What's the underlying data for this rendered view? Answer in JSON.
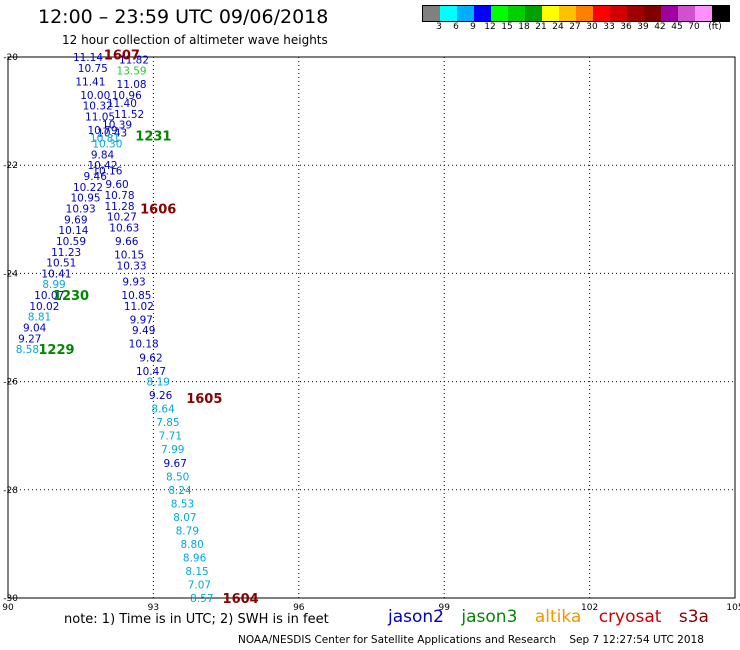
{
  "header": {
    "title": "12:00 – 23:59 UTC 09/06/2018",
    "subtitle": "12 hour collection of altimeter wave heights"
  },
  "colorbar": {
    "colors": [
      "#808080",
      "#00ffff",
      "#00b0ff",
      "#0000ff",
      "#00ff00",
      "#00d000",
      "#00a000",
      "#ffff00",
      "#ffc000",
      "#ff8000",
      "#ff0000",
      "#d00000",
      "#a00000",
      "#800000",
      "#a000a0",
      "#d050d0",
      "#ff90ff",
      "#000000"
    ],
    "labels": [
      "3",
      "6",
      "9",
      "12",
      "15",
      "18",
      "21",
      "24",
      "27",
      "30",
      "33",
      "36",
      "39",
      "42",
      "45",
      "70",
      "(ft)"
    ]
  },
  "map": {
    "lon_range": [
      90,
      105
    ],
    "lat_range": [
      -30,
      -20
    ],
    "x_ticks": [
      "90",
      "93",
      "96",
      "99",
      "102",
      "105"
    ],
    "y_ticks": [
      "-20",
      "-22",
      "-24",
      "-26",
      "-28",
      "-30"
    ]
  },
  "observations": [
    {
      "lon": 91.65,
      "lat": -20.0,
      "text": "11.14",
      "color": "#0000cc"
    },
    {
      "lon": 92.6,
      "lat": -20.05,
      "text": "11.82",
      "color": "#0000cc"
    },
    {
      "lon": 91.75,
      "lat": -20.2,
      "text": "10.75",
      "color": "#0000cc"
    },
    {
      "lon": 92.55,
      "lat": -20.25,
      "text": "13.59",
      "color": "#22cc22"
    },
    {
      "lon": 91.7,
      "lat": -20.45,
      "text": "11.41",
      "color": "#0000cc"
    },
    {
      "lon": 92.55,
      "lat": -20.5,
      "text": "11.08",
      "color": "#0000cc"
    },
    {
      "lon": 91.8,
      "lat": -20.7,
      "text": "10.00",
      "color": "#0000cc"
    },
    {
      "lon": 92.45,
      "lat": -20.7,
      "text": "10.96",
      "color": "#0000cc"
    },
    {
      "lon": 91.85,
      "lat": -20.9,
      "text": "10.32",
      "color": "#0000cc"
    },
    {
      "lon": 92.35,
      "lat": -20.85,
      "text": "11.40",
      "color": "#0000cc"
    },
    {
      "lon": 91.9,
      "lat": -21.1,
      "text": "11.05",
      "color": "#0000cc"
    },
    {
      "lon": 92.5,
      "lat": -21.05,
      "text": "11.52",
      "color": "#0000cc"
    },
    {
      "lon": 92.25,
      "lat": -21.25,
      "text": "10.39",
      "color": "#0000cc"
    },
    {
      "lon": 91.95,
      "lat": -21.35,
      "text": "10.79",
      "color": "#0000cc"
    },
    {
      "lon": 92.15,
      "lat": -21.4,
      "text": "10.43",
      "color": "#0000cc"
    },
    {
      "lon": 92.0,
      "lat": -21.5,
      "text": "10.81",
      "color": "#00aadd"
    },
    {
      "lon": 92.05,
      "lat": -21.6,
      "text": "10.30",
      "color": "#00aadd"
    },
    {
      "lon": 91.95,
      "lat": -21.8,
      "text": "9.84",
      "color": "#0000cc"
    },
    {
      "lon": 91.95,
      "lat": -22.0,
      "text": "10.42",
      "color": "#0000cc"
    },
    {
      "lon": 92.05,
      "lat": -22.1,
      "text": "10.16",
      "color": "#0000cc"
    },
    {
      "lon": 91.8,
      "lat": -22.2,
      "text": "9.46",
      "color": "#0000cc"
    },
    {
      "lon": 92.25,
      "lat": -22.35,
      "text": "9.60",
      "color": "#0000cc"
    },
    {
      "lon": 91.65,
      "lat": -22.4,
      "text": "10.22",
      "color": "#0000cc"
    },
    {
      "lon": 92.3,
      "lat": -22.55,
      "text": "10.78",
      "color": "#0000cc"
    },
    {
      "lon": 91.6,
      "lat": -22.6,
      "text": "10.95",
      "color": "#0000cc"
    },
    {
      "lon": 92.3,
      "lat": -22.75,
      "text": "11.28",
      "color": "#0000cc"
    },
    {
      "lon": 91.5,
      "lat": -22.8,
      "text": "10.93",
      "color": "#0000cc"
    },
    {
      "lon": 92.35,
      "lat": -22.95,
      "text": "10.27",
      "color": "#0000cc"
    },
    {
      "lon": 91.4,
      "lat": -23.0,
      "text": "9.69",
      "color": "#0000cc"
    },
    {
      "lon": 92.4,
      "lat": -23.15,
      "text": "10.63",
      "color": "#0000cc"
    },
    {
      "lon": 91.35,
      "lat": -23.2,
      "text": "10.14",
      "color": "#0000cc"
    },
    {
      "lon": 92.45,
      "lat": -23.4,
      "text": "9.66",
      "color": "#0000cc"
    },
    {
      "lon": 91.3,
      "lat": -23.4,
      "text": "10.59",
      "color": "#0000cc"
    },
    {
      "lon": 91.2,
      "lat": -23.6,
      "text": "11.23",
      "color": "#0000cc"
    },
    {
      "lon": 92.5,
      "lat": -23.65,
      "text": "10.15",
      "color": "#0000cc"
    },
    {
      "lon": 91.1,
      "lat": -23.8,
      "text": "10.51",
      "color": "#0000cc"
    },
    {
      "lon": 92.55,
      "lat": -23.85,
      "text": "10.33",
      "color": "#0000cc"
    },
    {
      "lon": 91.0,
      "lat": -24.0,
      "text": "10.41",
      "color": "#0000cc"
    },
    {
      "lon": 90.95,
      "lat": -24.2,
      "text": "8.99",
      "color": "#00aadd"
    },
    {
      "lon": 92.6,
      "lat": -24.15,
      "text": "9.93",
      "color": "#0000cc"
    },
    {
      "lon": 90.85,
      "lat": -24.4,
      "text": "10.07",
      "color": "#0000cc"
    },
    {
      "lon": 92.65,
      "lat": -24.4,
      "text": "10.85",
      "color": "#0000cc"
    },
    {
      "lon": 90.75,
      "lat": -24.6,
      "text": "10.02",
      "color": "#0000cc"
    },
    {
      "lon": 92.7,
      "lat": -24.6,
      "text": "11.02",
      "color": "#0000cc"
    },
    {
      "lon": 90.65,
      "lat": -24.8,
      "text": "8.81",
      "color": "#00aadd"
    },
    {
      "lon": 92.75,
      "lat": -24.85,
      "text": "9.97",
      "color": "#0000cc"
    },
    {
      "lon": 90.55,
      "lat": -25.0,
      "text": "9.04",
      "color": "#0000cc"
    },
    {
      "lon": 92.8,
      "lat": -25.05,
      "text": "9.49",
      "color": "#0000cc"
    },
    {
      "lon": 90.45,
      "lat": -25.2,
      "text": "9.27",
      "color": "#0000cc"
    },
    {
      "lon": 92.8,
      "lat": -25.3,
      "text": "10.18",
      "color": "#0000cc"
    },
    {
      "lon": 90.4,
      "lat": -25.4,
      "text": "8.58",
      "color": "#00aadd"
    },
    {
      "lon": 92.95,
      "lat": -25.55,
      "text": "9.62",
      "color": "#0000cc"
    },
    {
      "lon": 92.95,
      "lat": -25.8,
      "text": "10.47",
      "color": "#0000cc"
    },
    {
      "lon": 93.1,
      "lat": -26.0,
      "text": "8.19",
      "color": "#00aadd"
    },
    {
      "lon": 93.15,
      "lat": -26.25,
      "text": "9.26",
      "color": "#0000cc"
    },
    {
      "lon": 93.2,
      "lat": -26.5,
      "text": "8.64",
      "color": "#00aadd"
    },
    {
      "lon": 93.3,
      "lat": -26.75,
      "text": "7.85",
      "color": "#00aadd"
    },
    {
      "lon": 93.35,
      "lat": -27.0,
      "text": "7.71",
      "color": "#00aadd"
    },
    {
      "lon": 93.4,
      "lat": -27.25,
      "text": "7.99",
      "color": "#00aadd"
    },
    {
      "lon": 93.45,
      "lat": -27.5,
      "text": "9.67",
      "color": "#0000cc"
    },
    {
      "lon": 93.5,
      "lat": -27.75,
      "text": "8.50",
      "color": "#00aadd"
    },
    {
      "lon": 93.55,
      "lat": -28.0,
      "text": "8.24",
      "color": "#00aadd"
    },
    {
      "lon": 93.6,
      "lat": -28.25,
      "text": "8.53",
      "color": "#00aadd"
    },
    {
      "lon": 93.65,
      "lat": -28.5,
      "text": "8.07",
      "color": "#00aadd"
    },
    {
      "lon": 93.7,
      "lat": -28.75,
      "text": "8.79",
      "color": "#00aadd"
    },
    {
      "lon": 93.8,
      "lat": -29.0,
      "text": "8.80",
      "color": "#00aadd"
    },
    {
      "lon": 93.85,
      "lat": -29.25,
      "text": "8.96",
      "color": "#00aadd"
    },
    {
      "lon": 93.9,
      "lat": -29.5,
      "text": "8.15",
      "color": "#00aadd"
    },
    {
      "lon": 93.95,
      "lat": -29.75,
      "text": "7.07",
      "color": "#00aadd"
    },
    {
      "lon": 94.0,
      "lat": -30.0,
      "text": "8.57",
      "color": "#00aadd"
    }
  ],
  "pass_labels": [
    {
      "lon": 92.35,
      "lat": -19.95,
      "text": "1607",
      "color": "#880000"
    },
    {
      "lon": 93.0,
      "lat": -21.45,
      "text": "1231",
      "color": "#008800"
    },
    {
      "lon": 93.1,
      "lat": -22.8,
      "text": "1606",
      "color": "#880000"
    },
    {
      "lon": 91.3,
      "lat": -24.4,
      "text": "1230",
      "color": "#008800"
    },
    {
      "lon": 91.0,
      "lat": -25.4,
      "text": "1229",
      "color": "#008800"
    },
    {
      "lon": 94.05,
      "lat": -26.3,
      "text": "1605",
      "color": "#880000"
    },
    {
      "lon": 94.8,
      "lat": -30.0,
      "text": "1604",
      "color": "#880000"
    }
  ],
  "footer": {
    "note": "note: 1) Time is in UTC; 2) SWH is in feet",
    "legend": [
      {
        "text": "jason2",
        "color": "#0000cc"
      },
      {
        "text": "jason3",
        "color": "#008800"
      },
      {
        "text": "altika",
        "color": "#ee9900"
      },
      {
        "text": "cryosat",
        "color": "#cc0000"
      },
      {
        "text": "s3a",
        "color": "#880000"
      }
    ],
    "credit": "NOAA/NESDIS Center for Satellite Applications and Research",
    "timestamp": "Sep  7 12:27:54 UTC 2018"
  }
}
